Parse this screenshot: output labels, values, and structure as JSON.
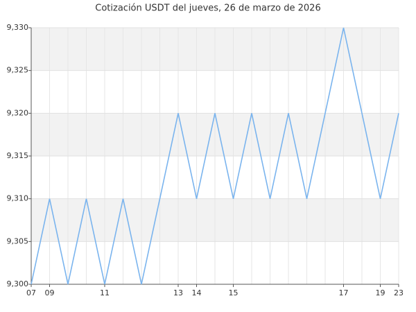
{
  "chart_data": {
    "type": "line",
    "title": "Cotización USDT del jueves, 26 de marzo de 2026",
    "categories": [
      "07",
      "09",
      null,
      null,
      "11",
      null,
      null,
      null,
      "13",
      "14",
      null,
      "15",
      null,
      null,
      null,
      null,
      null,
      "17",
      null,
      "19",
      "23"
    ],
    "values": [
      9.3,
      9.31,
      9.3,
      9.31,
      9.3,
      9.31,
      9.3,
      9.31,
      9.32,
      9.31,
      9.32,
      9.31,
      9.32,
      9.31,
      9.32,
      9.31,
      9.32,
      9.33,
      9.32,
      9.31,
      9.32
    ],
    "color": "#7ab4ee",
    "ylim": [
      9.3,
      9.33
    ],
    "yticks": [
      {
        "value": 9.3,
        "label": "9,300"
      },
      {
        "value": 9.305,
        "label": "9,305"
      },
      {
        "value": 9.31,
        "label": "9,310"
      },
      {
        "value": 9.315,
        "label": "9,315"
      },
      {
        "value": 9.32,
        "label": "9,320"
      },
      {
        "value": 9.325,
        "label": "9,325"
      },
      {
        "value": 9.33,
        "label": "9,330"
      }
    ],
    "grid": true
  }
}
